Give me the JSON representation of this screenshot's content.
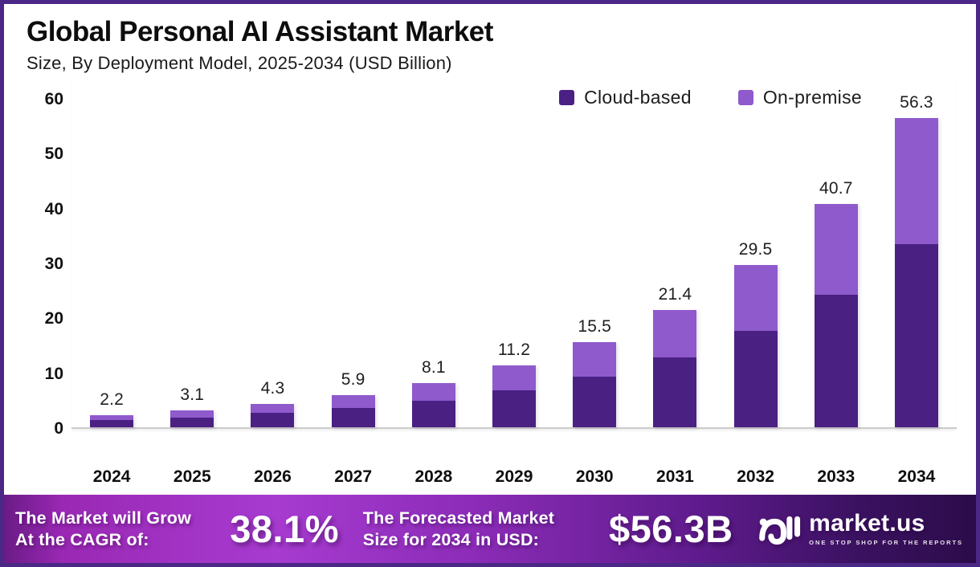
{
  "header": {
    "title": "Global Personal AI Assistant Market",
    "subtitle": "Size, By Deployment Model, 2025-2034 (USD Billion)"
  },
  "chart_data": {
    "type": "bar",
    "stacked": true,
    "title": "Global Personal AI Assistant Market",
    "subtitle": "Size, By Deployment Model, 2025-2034 (USD Billion)",
    "xlabel": "",
    "ylabel": "",
    "categories": [
      "2024",
      "2025",
      "2026",
      "2027",
      "2028",
      "2029",
      "2030",
      "2031",
      "2032",
      "2033",
      "2034"
    ],
    "series": [
      {
        "name": "Cloud-based",
        "color": "#4a2083",
        "values": [
          1.3,
          1.8,
          2.6,
          3.5,
          4.8,
          6.7,
          9.2,
          12.7,
          17.5,
          24.2,
          33.4
        ]
      },
      {
        "name": "On-premise",
        "color": "#8f5acc",
        "values": [
          0.9,
          1.3,
          1.7,
          2.4,
          3.3,
          4.5,
          6.3,
          8.7,
          12.0,
          16.5,
          22.9
        ]
      }
    ],
    "totals": [
      2.2,
      3.1,
      4.3,
      5.9,
      8.1,
      11.2,
      15.5,
      21.4,
      29.5,
      40.7,
      56.3
    ],
    "total_labels": [
      "2.2",
      "3.1",
      "4.3",
      "5.9",
      "8.1",
      "11.2",
      "15.5",
      "21.4",
      "29.5",
      "40.7",
      "56.3"
    ],
    "yticks": [
      0,
      10,
      20,
      30,
      40,
      50,
      60
    ],
    "ylim": [
      0,
      60
    ],
    "grid": false,
    "legend_position": "top-right"
  },
  "banner": {
    "cagr_label_line1": "The Market will Grow",
    "cagr_label_line2": "At the CAGR of:",
    "cagr_value": "38.1%",
    "forecast_label_line1": "The Forecasted Market",
    "forecast_label_line2": "Size for 2034 in USD:",
    "forecast_value": "$56.3B",
    "logo_name": "market.us",
    "logo_tagline": "ONE STOP SHOP FOR THE REPORTS"
  },
  "colors": {
    "cloud": "#4a2083",
    "onpremise": "#8f5acc",
    "frame_border": "#4b2786",
    "axis_line": "#cccccc",
    "banner_gradient_left": "#a73bd0",
    "banner_gradient_right": "#2c0c4a",
    "text_dark": "#0d0d0d",
    "text_light": "#ffffff"
  }
}
